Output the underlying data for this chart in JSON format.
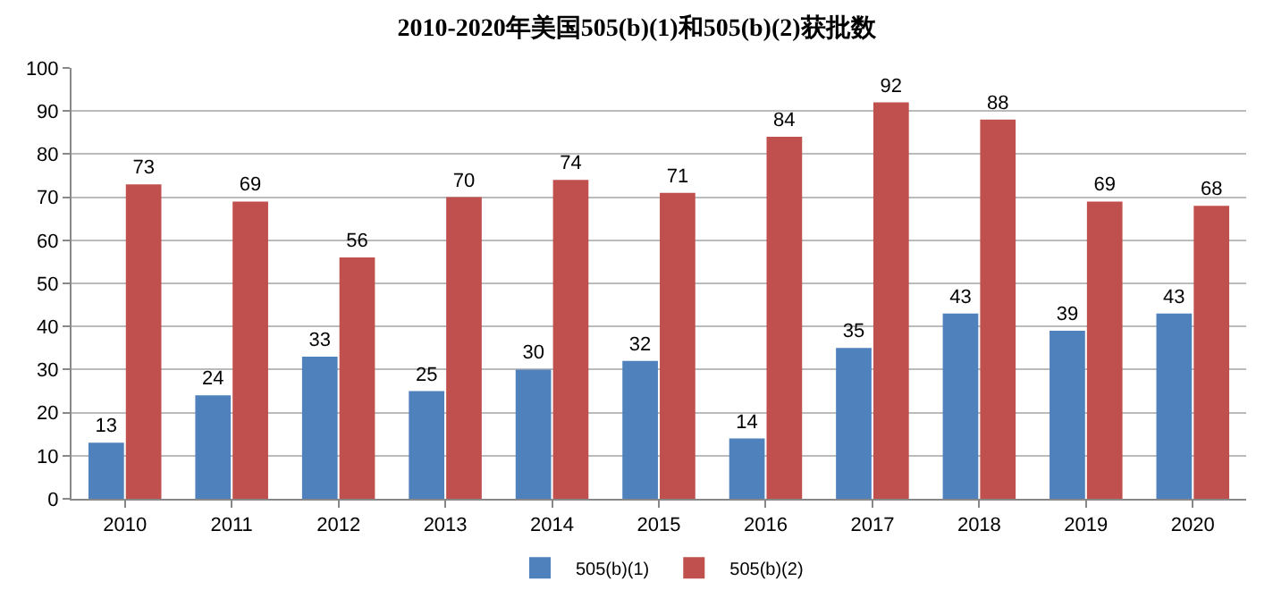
{
  "chart_data": {
    "type": "bar",
    "title": "2010-2020年美国505(b)(1)和505(b)(2)获批数",
    "categories": [
      "2010",
      "2011",
      "2012",
      "2013",
      "2014",
      "2015",
      "2016",
      "2017",
      "2018",
      "2019",
      "2020"
    ],
    "series": [
      {
        "name": "505(b)(1)",
        "color": "#4f81bd",
        "values": [
          13,
          24,
          33,
          25,
          30,
          32,
          14,
          35,
          43,
          39,
          43
        ]
      },
      {
        "name": "505(b)(2)",
        "color": "#c0504d",
        "values": [
          73,
          69,
          56,
          70,
          74,
          71,
          84,
          92,
          88,
          69,
          68
        ]
      }
    ],
    "ylim": [
      0,
      100
    ],
    "yticks": [
      0,
      10,
      20,
      30,
      40,
      50,
      60,
      70,
      80,
      90,
      100
    ],
    "grid": "y",
    "legend": "bottom",
    "data_labels": true
  }
}
